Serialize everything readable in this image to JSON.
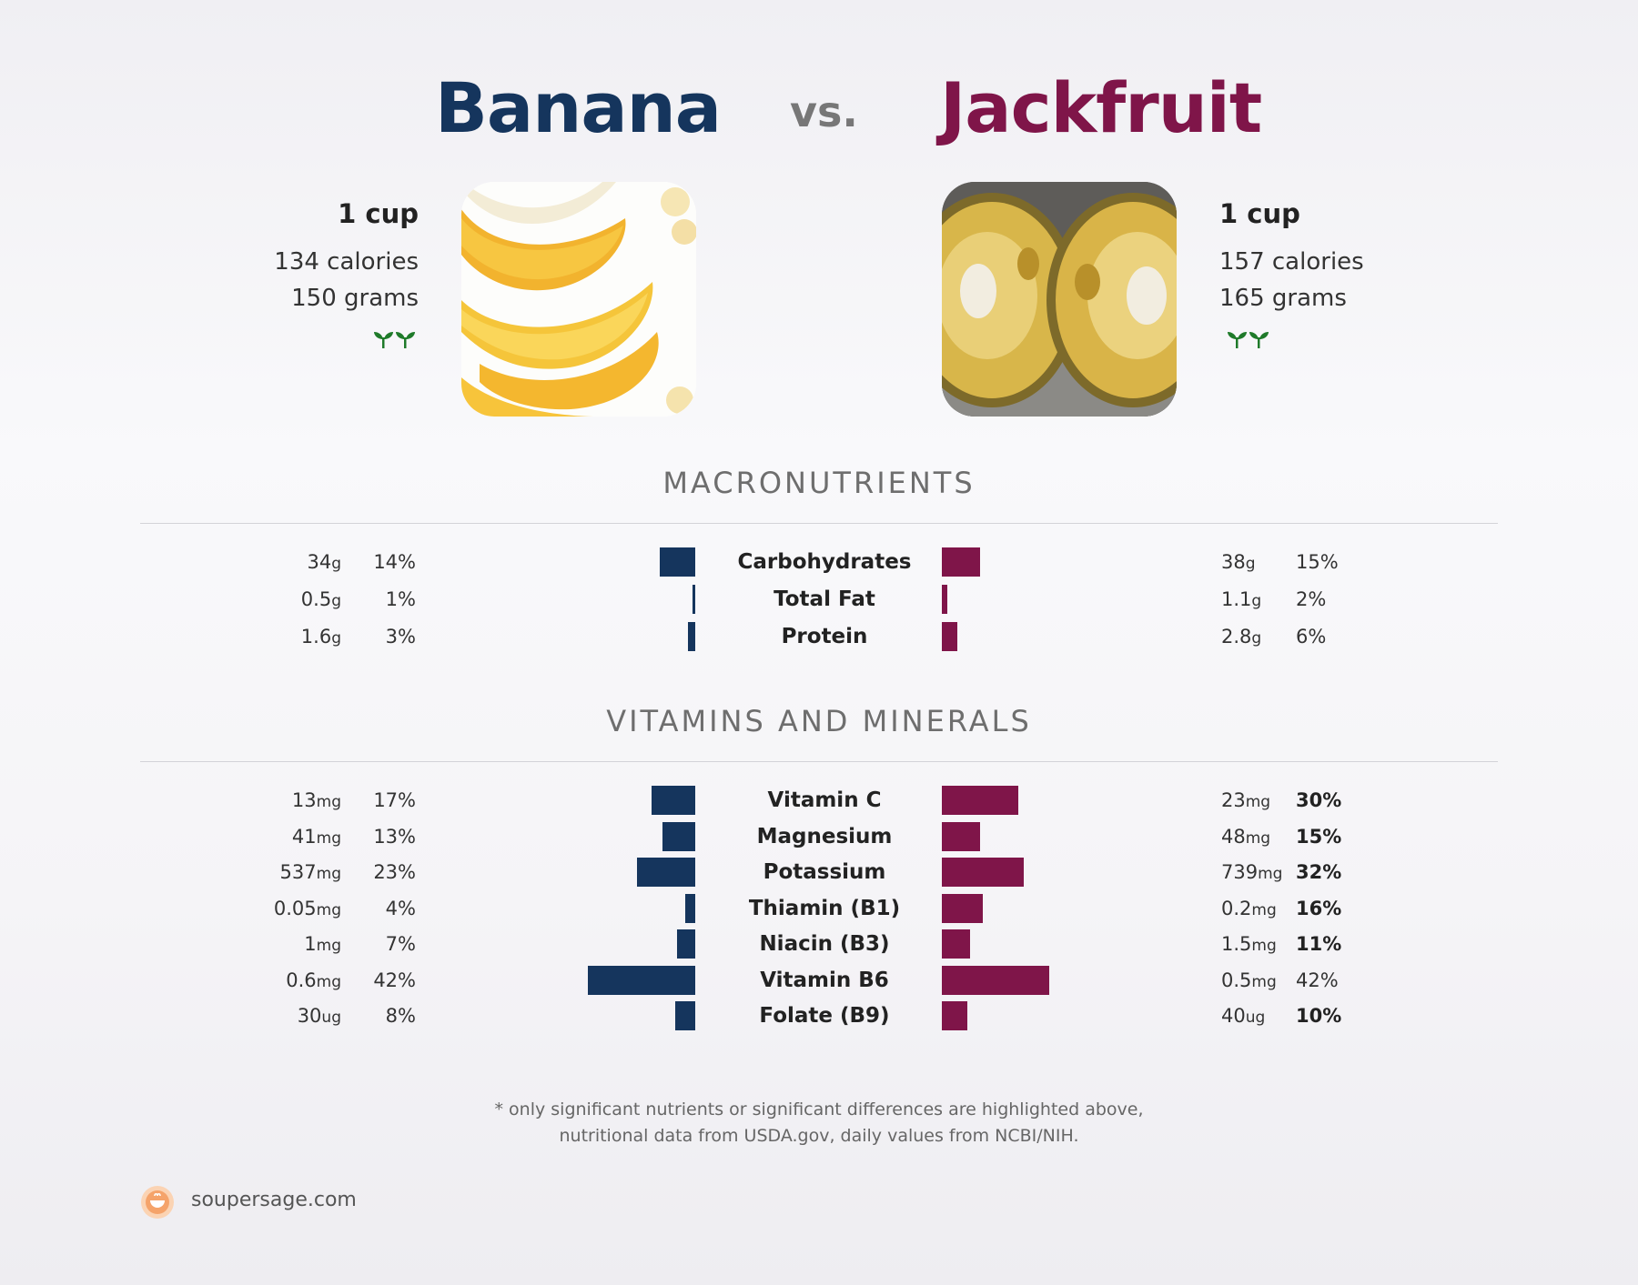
{
  "header": {
    "food_a": "Banana",
    "vs": "vs.",
    "food_b": "Jackfruit"
  },
  "food_a": {
    "serving": "1 cup",
    "calories": "134 calories",
    "grams": "150 grams",
    "badge_icon": "sprout-icon",
    "photo_icon": "banana-photo",
    "color": "#15355d"
  },
  "food_b": {
    "serving": "1 cup",
    "calories": "157 calories",
    "grams": "165 grams",
    "badge_icon": "sprout-icon",
    "photo_icon": "jackfruit-photo",
    "color": "#7f1549"
  },
  "sections": {
    "macros": "MACRONUTRIENTS",
    "vitamins": "VITAMINS AND MINERALS"
  },
  "chart_data": {
    "type": "bar",
    "series": [
      {
        "name": "Banana",
        "color": "#15355d"
      },
      {
        "name": "Jackfruit",
        "color": "#7f1549"
      }
    ],
    "macronutrients": [
      {
        "name": "Carbohydrates",
        "a_amount": "34",
        "a_unit": "g",
        "a_pct": "14%",
        "a_value": 14,
        "b_amount": "38",
        "b_unit": "g",
        "b_pct": "15%",
        "b_value": 15,
        "b_bold": false
      },
      {
        "name": "Total Fat",
        "a_amount": "0.5",
        "a_unit": "g",
        "a_pct": "1%",
        "a_value": 1,
        "b_amount": "1.1",
        "b_unit": "g",
        "b_pct": "2%",
        "b_value": 2,
        "b_bold": false
      },
      {
        "name": "Protein",
        "a_amount": "1.6",
        "a_unit": "g",
        "a_pct": "3%",
        "a_value": 3,
        "b_amount": "2.8",
        "b_unit": "g",
        "b_pct": "6%",
        "b_value": 6,
        "b_bold": false
      }
    ],
    "vitamins_minerals": [
      {
        "name": "Vitamin C",
        "a_amount": "13",
        "a_unit": "mg",
        "a_pct": "17%",
        "a_value": 17,
        "b_amount": "23",
        "b_unit": "mg",
        "b_pct": "30%",
        "b_value": 30,
        "b_bold": true
      },
      {
        "name": "Magnesium",
        "a_amount": "41",
        "a_unit": "mg",
        "a_pct": "13%",
        "a_value": 13,
        "b_amount": "48",
        "b_unit": "mg",
        "b_pct": "15%",
        "b_value": 15,
        "b_bold": true
      },
      {
        "name": "Potassium",
        "a_amount": "537",
        "a_unit": "mg",
        "a_pct": "23%",
        "a_value": 23,
        "b_amount": "739",
        "b_unit": "mg",
        "b_pct": "32%",
        "b_value": 32,
        "b_bold": true
      },
      {
        "name": "Thiamin (B1)",
        "a_amount": "0.05",
        "a_unit": "mg",
        "a_pct": "4%",
        "a_value": 4,
        "b_amount": "0.2",
        "b_unit": "mg",
        "b_pct": "16%",
        "b_value": 16,
        "b_bold": true
      },
      {
        "name": "Niacin (B3)",
        "a_amount": "1",
        "a_unit": "mg",
        "a_pct": "7%",
        "a_value": 7,
        "b_amount": "1.5",
        "b_unit": "mg",
        "b_pct": "11%",
        "b_value": 11,
        "b_bold": true
      },
      {
        "name": "Vitamin B6",
        "a_amount": "0.6",
        "a_unit": "mg",
        "a_pct": "42%",
        "a_value": 42,
        "b_amount": "0.5",
        "b_unit": "mg",
        "b_pct": "42%",
        "b_value": 42,
        "b_bold": false
      },
      {
        "name": "Folate (B9)",
        "a_amount": "30",
        "a_unit": "ug",
        "a_pct": "8%",
        "a_value": 8,
        "b_amount": "40",
        "b_unit": "ug",
        "b_pct": "10%",
        "b_value": 10,
        "b_bold": true
      }
    ]
  },
  "footnote": {
    "line1": "* only significant nutrients or significant differences are highlighted above,",
    "line2": "nutritional data from USDA.gov, daily values from NCBI/NIH."
  },
  "footer": {
    "site": "soupersage.com",
    "logo_icon": "soupersage-logo-icon"
  }
}
